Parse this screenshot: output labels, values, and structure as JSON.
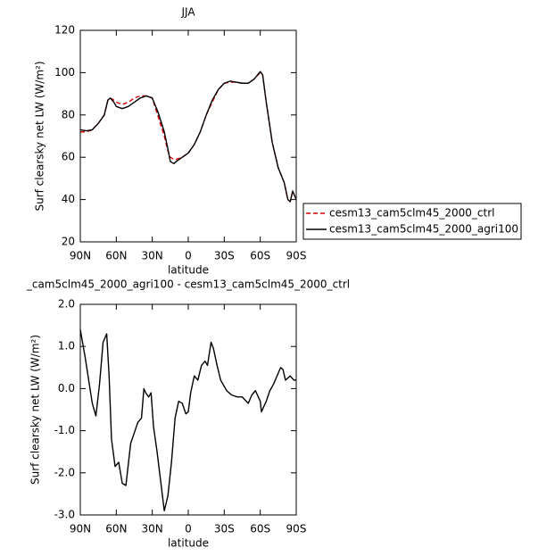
{
  "chart_data": [
    {
      "type": "line",
      "title": "JJA",
      "xlabel": "latitude",
      "ylabel": "Surf clearsky net LW (W/m²)",
      "x": [
        90,
        85,
        80,
        75,
        70,
        67,
        65,
        62,
        60,
        55,
        50,
        45,
        40,
        35,
        30,
        25,
        20,
        17,
        15,
        12,
        10,
        5,
        0,
        -5,
        -10,
        -15,
        -20,
        -25,
        -30,
        -35,
        -40,
        -45,
        -50,
        -55,
        -60,
        -62,
        -65,
        -70,
        -75,
        -80,
        -83,
        -85,
        -87,
        -90
      ],
      "series": [
        {
          "name": "cesm13_cam5clm45_2000_ctrl",
          "color": "#dd0000",
          "dash": true,
          "values": [
            72,
            72,
            73,
            76,
            80,
            87,
            88,
            87,
            86,
            85,
            86,
            88,
            89,
            89,
            88,
            79,
            70,
            63,
            60,
            59,
            59,
            60,
            62,
            66,
            72,
            80,
            86,
            92,
            95,
            95.5,
            95.5,
            95,
            95,
            97,
            100,
            99,
            86,
            67,
            55,
            48,
            40,
            39,
            44,
            40
          ]
        },
        {
          "name": "cesm13_cam5clm45_2000_agri100",
          "color": "#000000",
          "dash": false,
          "values": [
            73,
            72.5,
            73,
            76,
            80,
            87,
            88,
            86,
            84,
            83,
            84,
            86,
            88,
            89,
            88,
            81,
            72,
            64,
            58,
            57,
            58,
            60,
            62,
            66,
            72,
            80,
            87,
            92,
            95,
            96,
            95.5,
            95,
            95,
            97,
            100.5,
            99,
            86,
            67,
            55,
            48,
            40,
            39,
            44,
            40
          ]
        }
      ],
      "xlim": [
        90,
        -90
      ],
      "xticks": [
        {
          "value": 90,
          "label": "90N"
        },
        {
          "value": 60,
          "label": "60N"
        },
        {
          "value": 30,
          "label": "30N"
        },
        0,
        {
          "value": -30,
          "label": "30S"
        },
        {
          "value": -60,
          "label": "60S"
        },
        {
          "value": -90,
          "label": "90S"
        }
      ],
      "ylim": [
        20,
        120
      ],
      "yticks": [
        20,
        40,
        60,
        80,
        100,
        120
      ],
      "legend": "right"
    },
    {
      "type": "line",
      "title": "_cam5clm45_2000_agri100 - cesm13_cam5clm45_2000_ctrl",
      "xlabel": "latitude",
      "ylabel": "Surf clearsky net LW (W/m²)",
      "x": [
        90,
        86,
        83,
        80,
        77,
        74,
        71,
        68,
        66,
        64,
        61,
        58,
        55,
        52,
        50,
        48,
        45,
        42,
        39,
        37,
        35.5,
        33,
        31,
        29,
        26,
        23,
        20,
        17,
        14,
        11,
        8,
        5,
        2,
        0,
        -2,
        -5,
        -8,
        -11,
        -14,
        -16,
        -19,
        -21,
        -24,
        -27,
        -32,
        -36,
        -41,
        -45,
        -50,
        -53,
        -56,
        -60,
        -61,
        -65,
        -68,
        -71,
        -74,
        -77,
        -79,
        -81,
        -85,
        -88,
        -90
      ],
      "series": [
        {
          "color": "#000000",
          "dash": false,
          "values": [
            1.4,
            0.75,
            0.2,
            -0.35,
            -0.65,
            0.1,
            1.1,
            1.3,
            0.3,
            -1.2,
            -1.85,
            -1.75,
            -2.25,
            -2.3,
            -1.8,
            -1.3,
            -1.05,
            -0.8,
            -0.7,
            0.0,
            -0.1,
            -0.2,
            -0.1,
            -0.9,
            -1.5,
            -2.2,
            -2.9,
            -2.55,
            -1.75,
            -0.7,
            -0.3,
            -0.35,
            -0.6,
            -0.55,
            -0.1,
            0.3,
            0.2,
            0.55,
            0.65,
            0.55,
            1.1,
            0.95,
            0.55,
            0.2,
            -0.05,
            -0.15,
            -0.2,
            -0.2,
            -0.35,
            -0.15,
            -0.05,
            -0.3,
            -0.55,
            -0.3,
            -0.05,
            0.1,
            0.3,
            0.5,
            0.45,
            0.2,
            0.3,
            0.2,
            0.2
          ]
        }
      ],
      "xlim": [
        90,
        -90
      ],
      "xticks": [
        {
          "value": 90,
          "label": "90N"
        },
        {
          "value": 60,
          "label": "60N"
        },
        {
          "value": 30,
          "label": "30N"
        },
        0,
        {
          "value": -30,
          "label": "30S"
        },
        {
          "value": -60,
          "label": "60S"
        },
        {
          "value": -90,
          "label": "90S"
        }
      ],
      "ylim": [
        -3,
        2
      ],
      "yticks": [
        {
          "value": -3,
          "label": "-3.0"
        },
        {
          "value": -2,
          "label": "-2.0"
        },
        {
          "value": -1,
          "label": "-1.0"
        },
        {
          "value": 0,
          "label": "0.0"
        },
        {
          "value": 1,
          "label": "1.0"
        },
        {
          "value": 2,
          "label": "2.0"
        }
      ]
    }
  ]
}
